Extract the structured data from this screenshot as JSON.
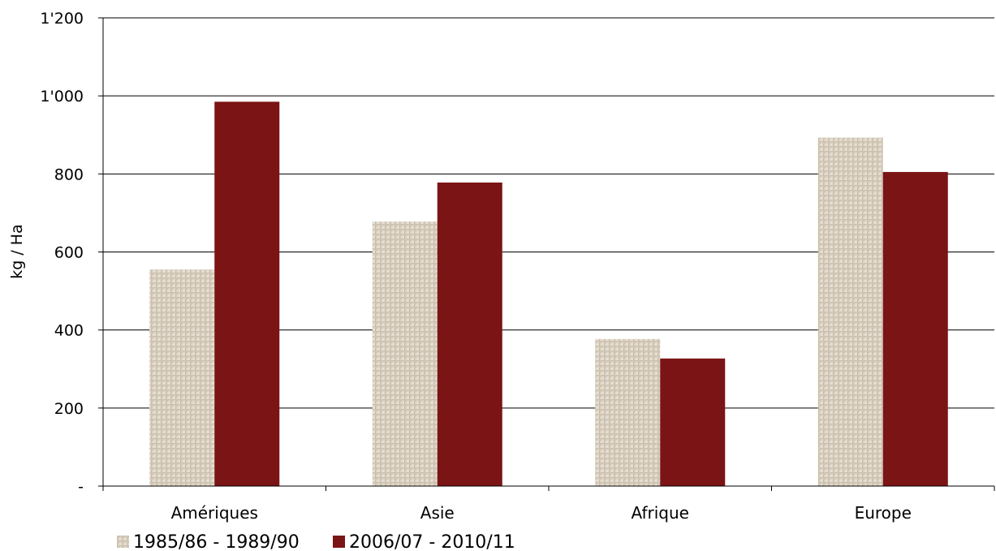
{
  "chart_data": {
    "type": "bar",
    "categories": [
      "Amériques",
      "Asie",
      "Afrique",
      "Europe"
    ],
    "series": [
      {
        "name": "1985/86 - 1989/90",
        "values": [
          555,
          678,
          377,
          893
        ],
        "color": "#d9d0c1",
        "pattern": "woven-texture"
      },
      {
        "name": "2006/07 - 2010/11",
        "values": [
          985,
          778,
          327,
          805
        ],
        "color": "#7b1414"
      }
    ],
    "ylabel": "kg / Ha",
    "xlabel": "",
    "ylim": [
      0,
      1200
    ],
    "yticks": [
      0,
      200,
      400,
      600,
      800,
      1000,
      1200
    ],
    "ytick_labels": [
      "-",
      "200",
      "400",
      "600",
      "800",
      "1'000",
      "1'200"
    ],
    "grid": true,
    "legend": "bottom-left"
  }
}
